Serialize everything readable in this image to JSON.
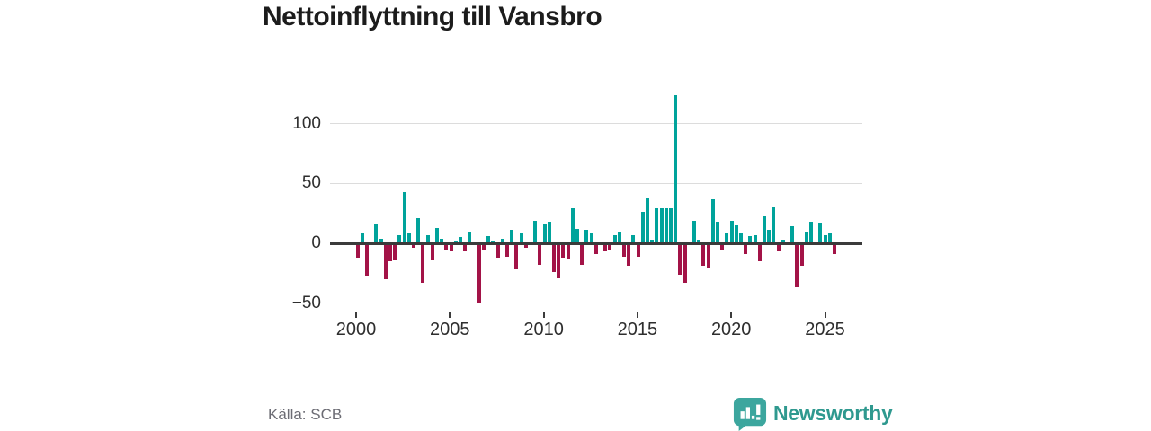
{
  "title": "Nettoinflyttning till Vansbro",
  "source": {
    "text": "Källa: SCB"
  },
  "branding": {
    "name": "Newsworthy",
    "logo_icon": "newsworthy-speech-bubble-bar-chart-icon"
  },
  "colors": {
    "positive": "#00a39b",
    "negative": "#a31347",
    "grid": "#dcdcdc",
    "zero_line": "#3b3b3b",
    "axis_text": "#2e2e2e",
    "title_text": "#1c1c1c",
    "source_text": "#6c6c74",
    "brand": "#2f998f"
  },
  "chart_data": {
    "type": "bar",
    "title": "Nettoinflyttning till Vansbro",
    "frequency": "quarterly",
    "first_period": "2000 Q1",
    "last_period": "2025 Q3",
    "grid": true,
    "legend": false,
    "x_axis": {
      "tick_labels": [
        "2000",
        "2005",
        "2010",
        "2015",
        "2020",
        "2025"
      ],
      "tick_years": [
        2000,
        2005,
        2010,
        2015,
        2020,
        2025
      ]
    },
    "y_axis": {
      "tick_labels": [
        "100",
        "50",
        "0",
        "−50"
      ],
      "tick_values": [
        100,
        50,
        0,
        -50
      ],
      "range": [
        -55,
        130
      ]
    },
    "series": [
      {
        "name": "Nettoinflyttning",
        "values": [
          -12,
          8,
          -27,
          0,
          16,
          4,
          -30,
          -15,
          -14,
          7,
          43,
          8,
          -4,
          21,
          -33,
          7,
          -14,
          13,
          4,
          -5,
          -6,
          2,
          5,
          -7,
          10,
          0,
          -50,
          -5,
          6,
          2,
          -12,
          4,
          -11,
          11,
          -22,
          8,
          -4,
          0,
          19,
          -18,
          16,
          18,
          -24,
          -29,
          -12,
          -13,
          29,
          12,
          -18,
          11,
          9,
          -9,
          0,
          -7,
          -5,
          7,
          10,
          -11,
          -19,
          7,
          -11,
          26,
          38,
          3,
          29,
          29,
          29,
          29,
          124,
          -26,
          -33,
          0,
          19,
          3,
          -19,
          -20,
          37,
          18,
          -5,
          8,
          19,
          15,
          9,
          -9,
          6,
          7,
          -15,
          23,
          11,
          31,
          -6,
          3,
          0,
          14,
          -37,
          -19,
          10,
          18,
          0,
          17,
          7,
          8,
          -9
        ]
      }
    ]
  }
}
